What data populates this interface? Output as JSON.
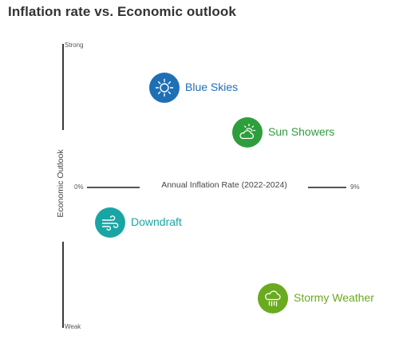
{
  "title": "Inflation rate vs. Economic outlook",
  "axes": {
    "y_title": "Economic Outlook",
    "y_top": "Strong",
    "y_bottom": "Weak",
    "x_title": "Annual Inflation Rate (2022-2024)",
    "x_left": "0%",
    "x_right": "9%"
  },
  "scenarios": [
    {
      "label": "Blue Skies",
      "icon": "sun-icon",
      "color": "#1f6fb5"
    },
    {
      "label": "Sun Showers",
      "icon": "sun-cloud-icon",
      "color": "#2e9e3c"
    },
    {
      "label": "Downdraft",
      "icon": "wind-icon",
      "color": "#1aa5a5"
    },
    {
      "label": "Stormy Weather",
      "icon": "rain-cloud-icon",
      "color": "#6aaa1f"
    }
  ]
}
